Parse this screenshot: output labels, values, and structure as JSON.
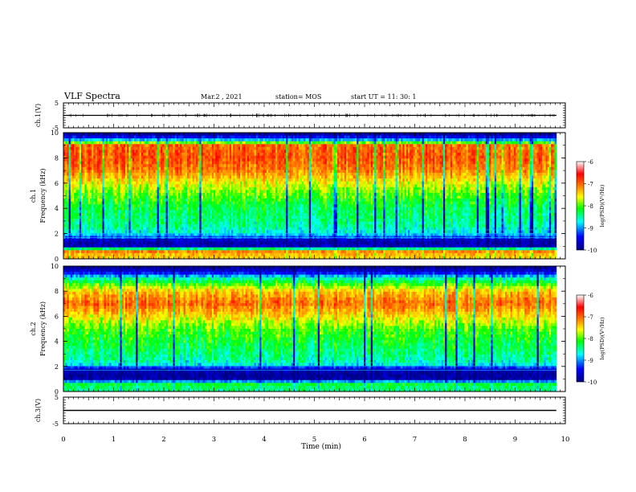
{
  "header": {
    "title": "VLF Spectra",
    "date": "Mar.2 , 2021",
    "station": "station= MOS",
    "start_ut": "start UT =  11: 30: 1"
  },
  "chart_data": [
    {
      "type": "line",
      "name": "ch1-voltage",
      "ylabel": "ch.1(V)",
      "ylim": [
        -5,
        5
      ],
      "yticks": [
        "5",
        "-5"
      ],
      "series": [
        {
          "x": [
            0,
            9.82
          ],
          "values": [
            0,
            0
          ]
        }
      ],
      "xlim": [
        0,
        10
      ]
    },
    {
      "type": "heatmap",
      "name": "ch1-spectrogram",
      "ylabel_line1": "ch.1",
      "ylabel_line2": "Frequency (kHz)",
      "ylim": [
        0,
        10
      ],
      "yticks": [
        "0",
        "2",
        "4",
        "6",
        "8",
        "10"
      ],
      "xlim": [
        0,
        10
      ],
      "data_end_min": 9.82,
      "frequency_profile_log_psd": [
        {
          "f": 0.2,
          "v": -7.4
        },
        {
          "f": 0.6,
          "v": -7.1
        },
        {
          "f": 1.0,
          "v": -9.7
        },
        {
          "f": 1.4,
          "v": -9.8
        },
        {
          "f": 1.8,
          "v": -9.0
        },
        {
          "f": 2.2,
          "v": -8.6
        },
        {
          "f": 3.0,
          "v": -8.4
        },
        {
          "f": 4.0,
          "v": -8.3
        },
        {
          "f": 5.0,
          "v": -8.0
        },
        {
          "f": 6.0,
          "v": -7.6
        },
        {
          "f": 7.0,
          "v": -7.1
        },
        {
          "f": 8.0,
          "v": -6.9
        },
        {
          "f": 9.0,
          "v": -7.0
        },
        {
          "f": 9.4,
          "v": -8.8
        },
        {
          "f": 9.8,
          "v": -9.8
        }
      ],
      "colorbar": {
        "label": "log(PSD)(V²/Hz)",
        "range": [
          -10,
          -6
        ],
        "ticks": [
          "-6",
          "-7",
          "-8",
          "-9",
          "-10"
        ],
        "colors": [
          "#000080",
          "#0000ff",
          "#00ffff",
          "#00ff00",
          "#ffff00",
          "#ff7f00",
          "#ff0000",
          "#ffffff"
        ]
      }
    },
    {
      "type": "heatmap",
      "name": "ch2-spectrogram",
      "ylabel_line1": "ch.2",
      "ylabel_line2": "Frequency (kHz)",
      "ylim": [
        0,
        10
      ],
      "yticks": [
        "0",
        "2",
        "4",
        "6",
        "8",
        "10"
      ],
      "xlim": [
        0,
        10
      ],
      "data_end_min": 9.82,
      "frequency_profile_log_psd": [
        {
          "f": 0.2,
          "v": -8.4
        },
        {
          "f": 0.6,
          "v": -8.2
        },
        {
          "f": 1.0,
          "v": -9.8
        },
        {
          "f": 1.4,
          "v": -9.9
        },
        {
          "f": 1.8,
          "v": -9.6
        },
        {
          "f": 2.2,
          "v": -8.6
        },
        {
          "f": 3.0,
          "v": -8.4
        },
        {
          "f": 4.0,
          "v": -8.2
        },
        {
          "f": 5.0,
          "v": -8.0
        },
        {
          "f": 6.0,
          "v": -7.5
        },
        {
          "f": 7.0,
          "v": -7.0
        },
        {
          "f": 8.0,
          "v": -7.4
        },
        {
          "f": 9.0,
          "v": -8.5
        },
        {
          "f": 9.5,
          "v": -9.5
        },
        {
          "f": 9.9,
          "v": -9.9
        }
      ],
      "colorbar": {
        "label": "log(PSD)(V²/Hz)",
        "range": [
          -10,
          -6
        ],
        "ticks": [
          "-6",
          "-7",
          "-8",
          "-9",
          "-10"
        ],
        "colors": [
          "#000080",
          "#0000ff",
          "#00ffff",
          "#00ff00",
          "#ffff00",
          "#ff7f00",
          "#ff0000",
          "#ffffff"
        ]
      }
    },
    {
      "type": "line",
      "name": "ch3-voltage",
      "ylabel": "ch.3(V)",
      "ylim": [
        -5,
        5
      ],
      "yticks": [
        "5",
        "-5"
      ],
      "series": [
        {
          "x": [
            0,
            9.82
          ],
          "values": [
            0,
            0
          ]
        }
      ],
      "xlim": [
        0,
        10
      ]
    }
  ],
  "x_axis": {
    "label": "Time (min)",
    "range": [
      0,
      10
    ],
    "ticks": [
      "0",
      "1",
      "2",
      "3",
      "4",
      "5",
      "6",
      "7",
      "8",
      "9",
      "10"
    ]
  }
}
